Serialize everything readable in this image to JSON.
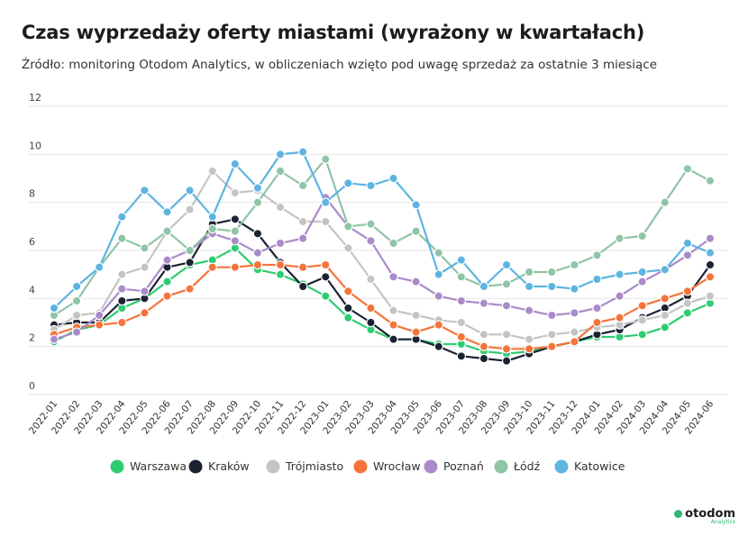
{
  "header": {
    "title": "Czas wyprzedaży oferty miastami (wyrażony w kwartałach)",
    "subtitle": "Źródło: monitoring Otodom Analytics, w obliczeniach wzięto pod uwagę sprzedaż za ostatnie 3 miesiące"
  },
  "brand": {
    "name": "otodom",
    "sub": "Analytics",
    "color": "#2eb872"
  },
  "chart_data": {
    "type": "line",
    "title": "Czas wyprzedaży oferty miastami (wyrażony w kwartałach)",
    "xlabel": "",
    "ylabel": "",
    "ylim": [
      0,
      12
    ],
    "yticks": [
      "0",
      "2",
      "4",
      "6",
      "8",
      "10",
      "12"
    ],
    "grid": true,
    "legend_position": "bottom",
    "categories": [
      "2022-01",
      "2022-02",
      "2022-03",
      "2022-04",
      "2022-05",
      "2022-06",
      "2022-07",
      "2022-08",
      "2022-09",
      "2022-10",
      "2022-11",
      "2022-12",
      "2023-01",
      "2023-02",
      "2023-03",
      "2023-04",
      "2023-05",
      "2023-06",
      "2023-07",
      "2023-08",
      "2023-09",
      "2023-10",
      "2023-11",
      "2023-12",
      "2024-01",
      "2024-02",
      "2024-03",
      "2024-04",
      "2024-05",
      "2024-06"
    ],
    "series": [
      {
        "name": "Warszawa",
        "color": "#2ecc71",
        "values": [
          2.2,
          2.7,
          2.9,
          3.6,
          4.0,
          4.7,
          5.4,
          5.6,
          6.1,
          5.2,
          5.0,
          4.6,
          4.1,
          3.2,
          2.7,
          2.3,
          2.3,
          2.1,
          2.1,
          1.8,
          1.7,
          1.8,
          2.0,
          2.2,
          2.4,
          2.4,
          2.5,
          2.8,
          3.4,
          3.8
        ]
      },
      {
        "name": "Kraków",
        "color": "#1b2333",
        "values": [
          2.9,
          3.0,
          3.0,
          3.9,
          4.0,
          5.3,
          5.5,
          7.1,
          7.3,
          6.7,
          5.5,
          4.5,
          4.9,
          3.6,
          3.0,
          2.3,
          2.3,
          2.0,
          1.6,
          1.5,
          1.4,
          1.7,
          2.0,
          2.2,
          2.5,
          2.7,
          3.2,
          3.6,
          4.1,
          5.4
        ]
      },
      {
        "name": "Trójmiasto",
        "color": "#c4c4c4",
        "values": [
          2.7,
          3.3,
          3.4,
          5.0,
          5.3,
          6.8,
          7.7,
          9.3,
          8.4,
          8.5,
          7.8,
          7.2,
          7.2,
          6.1,
          4.8,
          3.5,
          3.3,
          3.1,
          3.0,
          2.5,
          2.5,
          2.3,
          2.5,
          2.6,
          2.8,
          2.9,
          3.1,
          3.3,
          3.8,
          4.1
        ]
      },
      {
        "name": "Wrocław",
        "color": "#f4743b",
        "values": [
          2.5,
          2.8,
          2.9,
          3.0,
          3.4,
          4.1,
          4.4,
          5.3,
          5.3,
          5.4,
          5.4,
          5.3,
          5.4,
          4.3,
          3.6,
          2.9,
          2.6,
          2.9,
          2.4,
          2.0,
          1.9,
          1.9,
          2.0,
          2.2,
          3.0,
          3.2,
          3.7,
          4.0,
          4.3,
          4.9
        ]
      },
      {
        "name": "Poznań",
        "color": "#a98bc9",
        "values": [
          2.3,
          2.6,
          3.3,
          4.4,
          4.3,
          5.6,
          6.0,
          6.7,
          6.4,
          5.9,
          6.3,
          6.5,
          8.2,
          7.0,
          6.4,
          4.9,
          4.7,
          4.1,
          3.9,
          3.8,
          3.7,
          3.5,
          3.3,
          3.4,
          3.6,
          4.1,
          4.7,
          5.2,
          5.8,
          6.5
        ]
      },
      {
        "name": "Łódź",
        "color": "#8fc4a6",
        "values": [
          3.3,
          3.9,
          5.3,
          6.5,
          6.1,
          6.8,
          6.0,
          6.9,
          6.8,
          8.0,
          9.3,
          8.7,
          9.8,
          7.0,
          7.1,
          6.3,
          6.8,
          5.9,
          4.9,
          4.5,
          4.6,
          5.1,
          5.1,
          5.4,
          5.8,
          6.5,
          6.6,
          8.0,
          9.4,
          8.9
        ]
      },
      {
        "name": "Katowice",
        "color": "#5db4e1",
        "values": [
          3.6,
          4.5,
          5.3,
          7.4,
          8.5,
          7.6,
          8.5,
          7.4,
          9.6,
          8.6,
          10.0,
          10.1,
          8.0,
          8.8,
          8.7,
          9.0,
          7.9,
          5.0,
          5.6,
          4.5,
          5.4,
          4.5,
          4.5,
          4.4,
          4.8,
          5.0,
          5.1,
          5.2,
          6.3,
          5.9
        ]
      }
    ]
  }
}
